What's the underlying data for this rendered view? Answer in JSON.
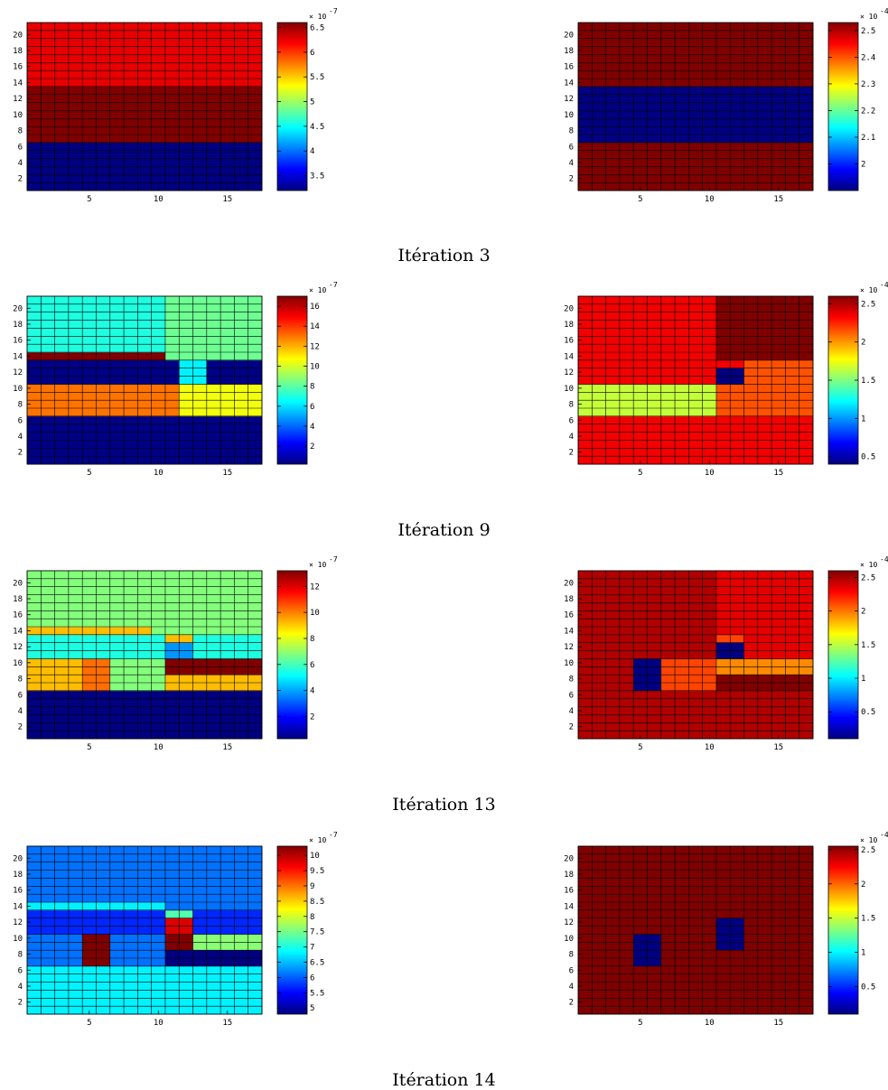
{
  "chart_data": [
    {
      "type": "heatmap",
      "caption": "Itération 3",
      "panels": [
        {
          "x_ticks": [
            5,
            10,
            15
          ],
          "y_ticks": [
            2,
            4,
            6,
            8,
            10,
            12,
            14,
            16,
            18,
            20
          ],
          "colorbar": {
            "min": 3.2,
            "max": 6.6,
            "ticks": [
              "3.5",
              "4",
              "4.5",
              "5",
              "5.5",
              "6",
              "6.5"
            ],
            "ticks_num": [
              3.5,
              4,
              4.5,
              5,
              5.5,
              6,
              6.5
            ],
            "multiplier_base": "× 10",
            "multiplier_exp": "-7"
          },
          "regions": [
            {
              "x": [
                1,
                17
              ],
              "y": [
                14,
                21
              ],
              "value": 6.25
            },
            {
              "x": [
                1,
                17
              ],
              "y": [
                7,
                13
              ],
              "value": 6.6
            },
            {
              "x": [
                1,
                17
              ],
              "y": [
                1,
                6
              ],
              "value": 3.2
            }
          ]
        },
        {
          "x_ticks": [
            5,
            10,
            15
          ],
          "y_ticks": [
            2,
            4,
            6,
            8,
            10,
            12,
            14,
            16,
            18,
            20
          ],
          "colorbar": {
            "min": 1.9,
            "max": 2.53,
            "ticks": [
              "2",
              "2.1",
              "2.2",
              "2.3",
              "2.4",
              "2.5"
            ],
            "ticks_num": [
              2,
              2.1,
              2.2,
              2.3,
              2.4,
              2.5
            ],
            "multiplier_base": "× 10",
            "multiplier_exp": "-4"
          },
          "regions": [
            {
              "x": [
                1,
                17
              ],
              "y": [
                14,
                21
              ],
              "value": 2.53
            },
            {
              "x": [
                1,
                17
              ],
              "y": [
                7,
                13
              ],
              "value": 1.9
            },
            {
              "x": [
                1,
                17
              ],
              "y": [
                1,
                6
              ],
              "value": 2.53
            }
          ]
        }
      ]
    },
    {
      "type": "heatmap",
      "caption": "Itération 9",
      "panels": [
        {
          "x_ticks": [
            5,
            10,
            15
          ],
          "y_ticks": [
            2,
            4,
            6,
            8,
            10,
            12,
            14,
            16,
            18,
            20
          ],
          "colorbar": {
            "min": 0.2,
            "max": 17,
            "ticks": [
              "2",
              "4",
              "6",
              "8",
              "10",
              "12",
              "14",
              "16"
            ],
            "ticks_num": [
              2,
              4,
              6,
              8,
              10,
              12,
              14,
              16
            ],
            "multiplier_base": "× 10",
            "multiplier_exp": "-7"
          },
          "regions": [
            {
              "x": [
                1,
                10
              ],
              "y": [
                15,
                21
              ],
              "value": 7.0
            },
            {
              "x": [
                11,
                17
              ],
              "y": [
                14,
                21
              ],
              "value": 8.3
            },
            {
              "x": [
                1,
                10
              ],
              "y": [
                14,
                14
              ],
              "value": 17
            },
            {
              "x": [
                1,
                11
              ],
              "y": [
                11,
                13
              ],
              "value": 0.3
            },
            {
              "x": [
                12,
                13
              ],
              "y": [
                11,
                13
              ],
              "value": 6.3
            },
            {
              "x": [
                14,
                17
              ],
              "y": [
                11,
                13
              ],
              "value": 0.3
            },
            {
              "x": [
                1,
                11
              ],
              "y": [
                7,
                10
              ],
              "value": 13
            },
            {
              "x": [
                12,
                17
              ],
              "y": [
                7,
                10
              ],
              "value": 10.5
            },
            {
              "x": [
                1,
                17
              ],
              "y": [
                1,
                6
              ],
              "value": 0.3
            }
          ]
        },
        {
          "x_ticks": [
            5,
            10,
            15
          ],
          "y_ticks": [
            2,
            4,
            6,
            8,
            10,
            12,
            14,
            16,
            18,
            20
          ],
          "colorbar": {
            "min": 0.4,
            "max": 2.6,
            "ticks": [
              "0.5",
              "1",
              "1.5",
              "2",
              "2.5"
            ],
            "ticks_num": [
              0.5,
              1,
              1.5,
              2,
              2.5
            ],
            "multiplier_base": "× 10",
            "multiplier_exp": "-4"
          },
          "regions": [
            {
              "x": [
                1,
                17
              ],
              "y": [
                1,
                21
              ],
              "value": 2.35
            },
            {
              "x": [
                11,
                17
              ],
              "y": [
                14,
                21
              ],
              "value": 2.6
            },
            {
              "x": [
                11,
                12
              ],
              "y": [
                11,
                12
              ],
              "value": 0.4
            },
            {
              "x": [
                13,
                17
              ],
              "y": [
                11,
                13
              ],
              "value": 2.15
            },
            {
              "x": [
                1,
                10
              ],
              "y": [
                7,
                10
              ],
              "value": 1.65
            },
            {
              "x": [
                11,
                17
              ],
              "y": [
                7,
                10
              ],
              "value": 2.15
            }
          ]
        }
      ]
    },
    {
      "type": "heatmap",
      "caption": "Itération 13",
      "panels": [
        {
          "x_ticks": [
            5,
            10,
            15
          ],
          "y_ticks": [
            2,
            4,
            6,
            8,
            10,
            12,
            14,
            16,
            18,
            20
          ],
          "colorbar": {
            "min": 0.3,
            "max": 13.2,
            "ticks": [
              "2",
              "4",
              "6",
              "8",
              "10",
              "12"
            ],
            "ticks_num": [
              2,
              4,
              6,
              8,
              10,
              12
            ],
            "multiplier_base": "× 10",
            "multiplier_exp": "-7"
          },
          "regions": [
            {
              "x": [
                1,
                17
              ],
              "y": [
                15,
                21
              ],
              "value": 6.8
            },
            {
              "x": [
                1,
                9
              ],
              "y": [
                14,
                14
              ],
              "value": 9.2
            },
            {
              "x": [
                10,
                17
              ],
              "y": [
                14,
                14
              ],
              "value": 6.8
            },
            {
              "x": [
                1,
                17
              ],
              "y": [
                11,
                13
              ],
              "value": 5.5
            },
            {
              "x": [
                11,
                12
              ],
              "y": [
                13,
                13
              ],
              "value": 9.2
            },
            {
              "x": [
                11,
                12
              ],
              "y": [
                11,
                12
              ],
              "value": 3.8
            },
            {
              "x": [
                1,
                4
              ],
              "y": [
                7,
                10
              ],
              "value": 9.2
            },
            {
              "x": [
                5,
                6
              ],
              "y": [
                7,
                10
              ],
              "value": 10.2
            },
            {
              "x": [
                7,
                10
              ],
              "y": [
                7,
                10
              ],
              "value": 6.8
            },
            {
              "x": [
                11,
                17
              ],
              "y": [
                9,
                10
              ],
              "value": 13.2
            },
            {
              "x": [
                11,
                17
              ],
              "y": [
                7,
                8
              ],
              "value": 9.2
            },
            {
              "x": [
                1,
                17
              ],
              "y": [
                1,
                6
              ],
              "value": 0.3
            }
          ]
        },
        {
          "x_ticks": [
            5,
            10,
            15
          ],
          "y_ticks": [
            2,
            4,
            6,
            8,
            10,
            12,
            14,
            16,
            18,
            20
          ],
          "colorbar": {
            "min": 0.1,
            "max": 2.6,
            "ticks": [
              "0.5",
              "1",
              "1.5",
              "2",
              "2.5"
            ],
            "ticks_num": [
              0.5,
              1,
              1.5,
              2,
              2.5
            ],
            "multiplier_base": "× 10",
            "multiplier_exp": "-4"
          },
          "regions": [
            {
              "x": [
                1,
                17
              ],
              "y": [
                1,
                21
              ],
              "value": 2.48
            },
            {
              "x": [
                11,
                17
              ],
              "y": [
                11,
                21
              ],
              "value": 2.35
            },
            {
              "x": [
                5,
                6
              ],
              "y": [
                7,
                10
              ],
              "value": 0.1
            },
            {
              "x": [
                7,
                10
              ],
              "y": [
                7,
                10
              ],
              "value": 2.12
            },
            {
              "x": [
                11,
                12
              ],
              "y": [
                13,
                13
              ],
              "value": 2.12
            },
            {
              "x": [
                11,
                12
              ],
              "y": [
                11,
                12
              ],
              "value": 0.1
            },
            {
              "x": [
                11,
                17
              ],
              "y": [
                9,
                10
              ],
              "value": 1.95
            },
            {
              "x": [
                11,
                17
              ],
              "y": [
                7,
                8
              ],
              "value": 2.6
            }
          ]
        }
      ]
    },
    {
      "type": "heatmap",
      "caption": "Itération 14",
      "panels": [
        {
          "x_ticks": [
            5,
            10,
            15
          ],
          "y_ticks": [
            2,
            4,
            6,
            8,
            10,
            12,
            14,
            16,
            18,
            20
          ],
          "colorbar": {
            "min": 4.8,
            "max": 10.3,
            "ticks": [
              "5",
              "5.5",
              "6",
              "6.5",
              "7",
              "7.5",
              "8",
              "8.5",
              "9",
              "9.5",
              "10"
            ],
            "ticks_num": [
              5,
              5.5,
              6,
              6.5,
              7,
              7.5,
              8,
              8.5,
              9,
              9.5,
              10
            ],
            "multiplier_base": "× 10",
            "multiplier_exp": "-7"
          },
          "regions": [
            {
              "x": [
                1,
                17
              ],
              "y": [
                15,
                21
              ],
              "value": 6.1
            },
            {
              "x": [
                1,
                10
              ],
              "y": [
                14,
                14
              ],
              "value": 6.8
            },
            {
              "x": [
                11,
                17
              ],
              "y": [
                14,
                14
              ],
              "value": 6.1
            },
            {
              "x": [
                1,
                17
              ],
              "y": [
                11,
                13
              ],
              "value": 5.7
            },
            {
              "x": [
                11,
                12
              ],
              "y": [
                13,
                13
              ],
              "value": 7.3
            },
            {
              "x": [
                11,
                12
              ],
              "y": [
                11,
                12
              ],
              "value": 9.8
            },
            {
              "x": [
                1,
                17
              ],
              "y": [
                7,
                10
              ],
              "value": 6.1
            },
            {
              "x": [
                5,
                6
              ],
              "y": [
                7,
                10
              ],
              "value": 10.3
            },
            {
              "x": [
                11,
                12
              ],
              "y": [
                9,
                10
              ],
              "value": 10.3
            },
            {
              "x": [
                13,
                17
              ],
              "y": [
                9,
                10
              ],
              "value": 7.6
            },
            {
              "x": [
                11,
                17
              ],
              "y": [
                7,
                8
              ],
              "value": 4.8
            },
            {
              "x": [
                1,
                17
              ],
              "y": [
                1,
                6
              ],
              "value": 6.8
            }
          ]
        },
        {
          "x_ticks": [
            5,
            10,
            15
          ],
          "y_ticks": [
            2,
            4,
            6,
            8,
            10,
            12,
            14,
            16,
            18,
            20
          ],
          "colorbar": {
            "min": 0.1,
            "max": 2.55,
            "ticks": [
              "0.5",
              "1",
              "1.5",
              "2",
              "2.5"
            ],
            "ticks_num": [
              0.5,
              1,
              1.5,
              2,
              2.5
            ],
            "multiplier_base": "× 10",
            "multiplier_exp": "-4"
          },
          "regions": [
            {
              "x": [
                1,
                17
              ],
              "y": [
                1,
                21
              ],
              "value": 2.55
            },
            {
              "x": [
                5,
                6
              ],
              "y": [
                7,
                10
              ],
              "value": 0.1
            },
            {
              "x": [
                11,
                12
              ],
              "y": [
                9,
                12
              ],
              "value": 0.1
            }
          ]
        }
      ]
    }
  ]
}
